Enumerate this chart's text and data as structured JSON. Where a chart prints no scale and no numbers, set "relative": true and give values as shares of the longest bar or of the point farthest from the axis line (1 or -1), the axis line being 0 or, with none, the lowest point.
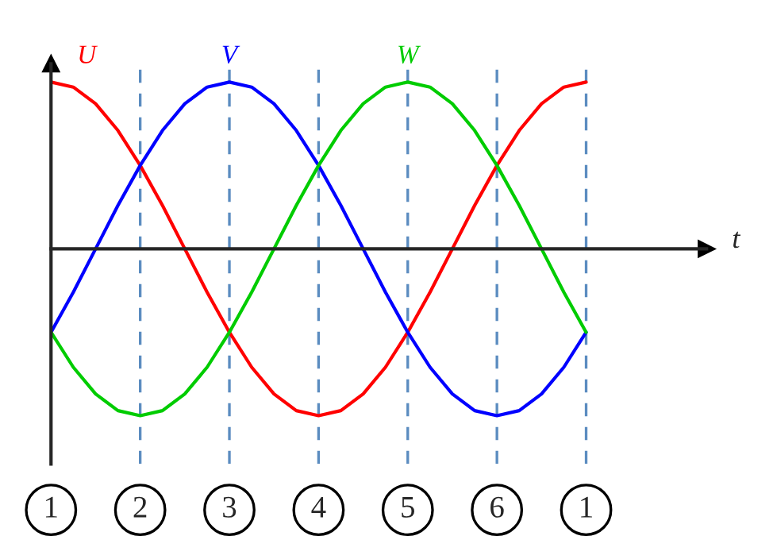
{
  "chart_data": {
    "type": "line",
    "relative": true,
    "xlabel": "t",
    "categories": [
      "1",
      null,
      null,
      null,
      "2",
      null,
      null,
      null,
      "3",
      null,
      null,
      null,
      "4",
      null,
      null,
      null,
      "5",
      null,
      null,
      null,
      "6",
      null,
      null,
      null,
      "1"
    ],
    "series": [
      {
        "name": "U",
        "color": "#ff0000",
        "values": [
          1,
          0.97,
          0.87,
          0.71,
          0.5,
          0.26,
          0,
          -0.26,
          -0.5,
          -0.71,
          -0.87,
          -0.97,
          -1,
          -0.97,
          -0.87,
          -0.71,
          -0.5,
          -0.26,
          0,
          0.26,
          0.5,
          0.71,
          0.87,
          0.97,
          1
        ]
      },
      {
        "name": "V",
        "color": "#0000ff",
        "values": [
          -0.5,
          -0.26,
          0,
          0.26,
          0.5,
          0.71,
          0.87,
          0.97,
          1,
          0.97,
          0.87,
          0.71,
          0.5,
          0.26,
          0,
          -0.26,
          -0.5,
          -0.71,
          -0.87,
          -0.97,
          -1,
          -0.97,
          -0.87,
          -0.71,
          -0.5
        ]
      },
      {
        "name": "W",
        "color": "#00cc00",
        "values": [
          -0.5,
          -0.71,
          -0.87,
          -0.97,
          -1,
          -0.97,
          -0.87,
          -0.71,
          -0.5,
          -0.26,
          0,
          0.26,
          0.5,
          0.71,
          0.87,
          0.97,
          1,
          0.97,
          0.87,
          0.71,
          0.5,
          0.26,
          0,
          -0.26,
          -0.5
        ]
      }
    ],
    "grid": "x",
    "legend": false,
    "marker": "none",
    "line_style": "solid"
  }
}
